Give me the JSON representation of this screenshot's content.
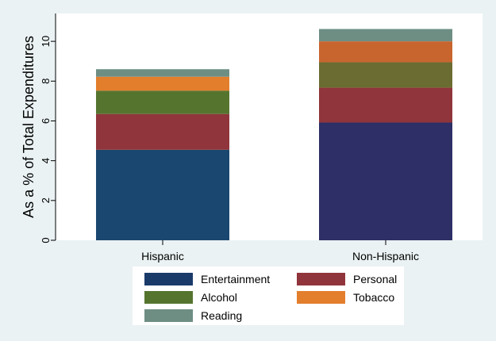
{
  "chart_data": {
    "type": "bar",
    "stacked": true,
    "orientation": "vertical",
    "title": "",
    "xlabel": "",
    "ylabel": "As a % of Total Expenditures",
    "ylim": [
      0,
      11.4
    ],
    "yticks": [
      0,
      2,
      4,
      6,
      8,
      10
    ],
    "ytick_labels": [
      "0",
      "2",
      "4",
      "6",
      "8",
      "10"
    ],
    "categories": [
      "Hispanic",
      "Non-Hispanic"
    ],
    "grid": false,
    "legend_position": "bottom",
    "bar_colors_vary_by_category": true,
    "series": [
      {
        "name": "Entertainment",
        "values": [
          4.55,
          5.92
        ],
        "colors": [
          "#1a476f",
          "#2d2f66"
        ],
        "legend_color": "#1a3a6a"
      },
      {
        "name": "Personal",
        "values": [
          1.8,
          1.75
        ],
        "colors": [
          "#90353b",
          "#90353b"
        ],
        "legend_color": "#90353b"
      },
      {
        "name": "Alcohol",
        "values": [
          1.17,
          1.28
        ],
        "colors": [
          "#55752f",
          "#6b6c31"
        ],
        "legend_color": "#55752f"
      },
      {
        "name": "Tobacco",
        "values": [
          0.7,
          1.05
        ],
        "colors": [
          "#e37e2d",
          "#c8652e"
        ],
        "legend_color": "#e37e2d"
      },
      {
        "name": "Reading",
        "values": [
          0.38,
          0.62
        ],
        "colors": [
          "#6e8e84",
          "#6e8e84"
        ],
        "legend_color": "#6e8e84"
      }
    ]
  }
}
